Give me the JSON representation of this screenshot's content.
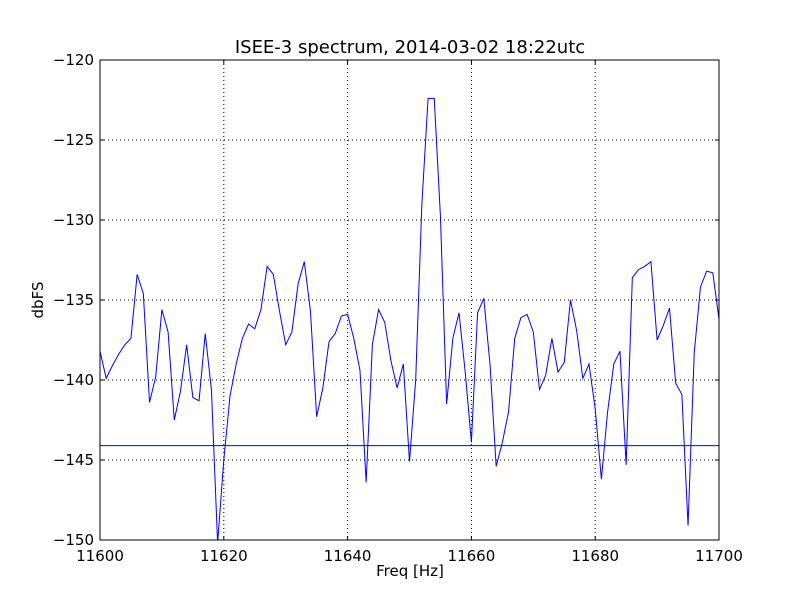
{
  "chart_data": {
    "type": "line",
    "title": "ISEE-3 spectrum, 2014-03-02 18:22utc",
    "xlabel": "Freq [Hz]",
    "ylabel": "dbFS",
    "xlim": [
      11600,
      11700
    ],
    "ylim": [
      -150,
      -120
    ],
    "xticks": [
      11600,
      11620,
      11640,
      11660,
      11680,
      11700
    ],
    "yticks": [
      -150,
      -145,
      -140,
      -135,
      -130,
      -125,
      -120
    ],
    "xtick_labels": [
      "11600",
      "11620",
      "11640",
      "11660",
      "11680",
      "11700"
    ],
    "ytick_labels": [
      "−150",
      "−145",
      "−140",
      "−135",
      "−130",
      "−125",
      "−120"
    ],
    "grid": true,
    "line_color": "#0000ff",
    "series": [
      {
        "x": [
          11600.0,
          11601.0,
          11602.0,
          11603.0,
          11604.0,
          11605.0,
          11606.0,
          11607.0,
          11608.0,
          11609.0,
          11610.0,
          11611.0,
          11612.0,
          11613.0,
          11614.0,
          11615.0,
          11616.0,
          11617.0,
          11618.0,
          11619.0,
          11620.0,
          11621.0,
          11622.0,
          11623.0,
          11624.0,
          11625.0,
          11626.0,
          11627.0,
          11628.0,
          11629.0,
          11630.0,
          11631.0,
          11632.0,
          11633.0,
          11634.0,
          11635.0,
          11636.0,
          11637.0,
          11638.0,
          11639.0,
          11640.0,
          11641.0,
          11642.0,
          11643.0,
          11644.0,
          11645.0,
          11646.0,
          11647.0,
          11648.0,
          11649.0,
          11650.0,
          11651.0,
          11652.0,
          11653.0,
          11654.0,
          11655.0,
          11656.0,
          11657.0,
          11658.0,
          11659.0,
          11660.0,
          11661.0,
          11662.0,
          11663.0,
          11664.0,
          11665.0,
          11666.0,
          11667.0,
          11668.0,
          11669.0,
          11670.0,
          11671.0,
          11672.0,
          11673.0,
          11674.0,
          11675.0,
          11676.0,
          11677.0,
          11678.0,
          11679.0,
          11680.0,
          11681.0,
          11682.0,
          11683.0,
          11684.0,
          11685.0,
          11686.0,
          11687.0,
          11688.0,
          11689.0,
          11690.0,
          11691.0,
          11692.0,
          11693.0,
          11694.0,
          11695.0,
          11696.0,
          11697.0,
          11698.0,
          11699.0,
          11700.0
        ],
        "y": [
          -138.2,
          -139.9,
          -139.1,
          -138.4,
          -137.8,
          -137.4,
          -133.4,
          -134.6,
          -141.4,
          -139.8,
          -135.6,
          -137.0,
          -142.5,
          -140.7,
          -137.8,
          -141.1,
          -141.3,
          -137.1,
          -140.6,
          -150.2,
          -145.0,
          -141.0,
          -139.0,
          -137.4,
          -136.5,
          -136.8,
          -135.6,
          -132.9,
          -133.4,
          -135.7,
          -137.8,
          -137.0,
          -134.0,
          -132.6,
          -135.7,
          -142.3,
          -140.5,
          -137.6,
          -137.1,
          -136.0,
          -135.9,
          -137.4,
          -139.4,
          -146.4,
          -137.8,
          -135.6,
          -136.4,
          -138.8,
          -140.5,
          -139.0,
          -145.1,
          -140.0,
          -129.0,
          -122.4,
          -122.4,
          -129.8,
          -141.5,
          -137.4,
          -135.8,
          -139.5,
          -143.9,
          -135.8,
          -134.9,
          -139.0,
          -145.4,
          -143.9,
          -142.0,
          -137.4,
          -136.1,
          -135.9,
          -137.0,
          -140.6,
          -139.7,
          -137.4,
          -139.5,
          -138.9,
          -135.0,
          -136.9,
          -139.9,
          -139.0,
          -141.8,
          -146.2,
          -142.0,
          -139.0,
          -138.2,
          -145.3,
          -133.6,
          -133.1,
          -132.9,
          -132.6,
          -137.5,
          -136.6,
          -135.5,
          -140.2,
          -140.9,
          -149.1,
          -138.3,
          -134.2,
          -133.2,
          -133.3,
          -136.2
        ]
      },
      {
        "x": [
          11600,
          11700
        ],
        "y": [
          -144.1,
          -144.1
        ]
      }
    ]
  }
}
